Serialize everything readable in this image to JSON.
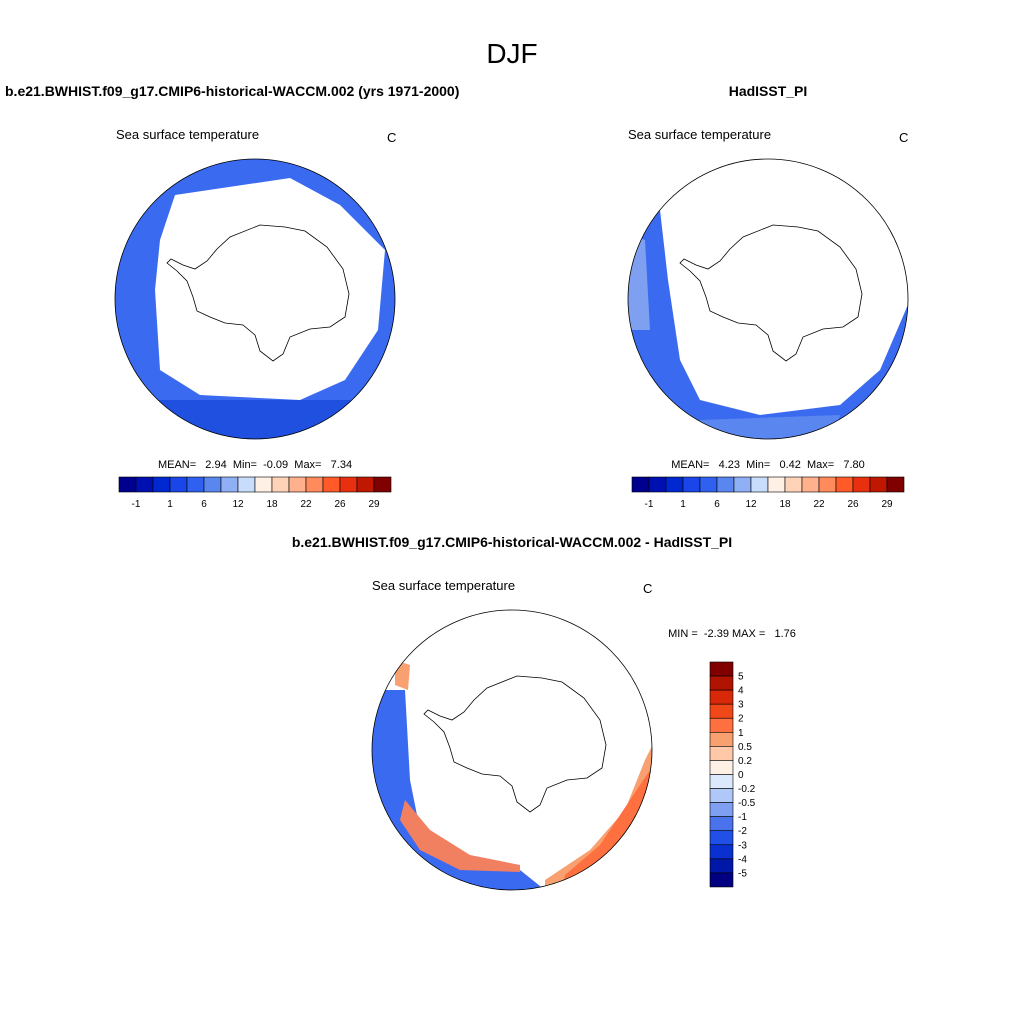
{
  "title": "DJF",
  "panels": [
    {
      "title": "b.e21.BWHIST.f09_g17.CMIP6-historical-WACCM.002 (yrs 1971-2000)",
      "variable": "Sea surface temperature",
      "units": "C",
      "stats": "MEAN=   2.94  Min=  -0.09  Max=   7.34",
      "colorbar": {
        "labels": [
          "-1",
          "1",
          "6",
          "12",
          "18",
          "22",
          "26",
          "29"
        ],
        "colors": [
          "#00008f",
          "#0010b0",
          "#0028d0",
          "#1a45e8",
          "#3060f0",
          "#5a86f0",
          "#8fb0f5",
          "#c8dcfc",
          "#fff0e6",
          "#ffd3b8",
          "#ffb08c",
          "#ff8a5c",
          "#ff5a28",
          "#e83010",
          "#c01800",
          "#800000"
        ]
      }
    },
    {
      "title": "HadISST_PI",
      "variable": "Sea surface temperature",
      "units": "C",
      "stats": "MEAN=   4.23  Min=   0.42  Max=   7.80",
      "colorbar": {
        "labels": [
          "-1",
          "1",
          "6",
          "12",
          "18",
          "22",
          "26",
          "29"
        ],
        "colors": [
          "#00008f",
          "#0010b0",
          "#0028d0",
          "#1a45e8",
          "#3060f0",
          "#5a86f0",
          "#8fb0f5",
          "#c8dcfc",
          "#fff0e6",
          "#ffd3b8",
          "#ffb08c",
          "#ff8a5c",
          "#ff5a28",
          "#e83010",
          "#c01800",
          "#800000"
        ]
      }
    },
    {
      "title": "b.e21.BWHIST.f09_g17.CMIP6-historical-WACCM.002 - HadISST_PI",
      "variable": "Sea surface temperature",
      "units": "C",
      "stats": "MIN =  -2.39 MAX =   1.76",
      "colorbar": {
        "labels": [
          "5",
          "4",
          "3",
          "2",
          "1",
          "0.5",
          "0.2",
          "0",
          "-0.2",
          "-0.5",
          "-1",
          "-2",
          "-3",
          "-4",
          "-5"
        ],
        "colors": [
          "#800000",
          "#b01400",
          "#d82808",
          "#f04818",
          "#ff7040",
          "#f8a070",
          "#ffc8a8",
          "#fff0e6",
          "#dce8fc",
          "#b0c8f8",
          "#7fa0f0",
          "#4a72ec",
          "#2050e8",
          "#0a30d0",
          "#0018a8",
          "#000080"
        ]
      }
    }
  ]
}
